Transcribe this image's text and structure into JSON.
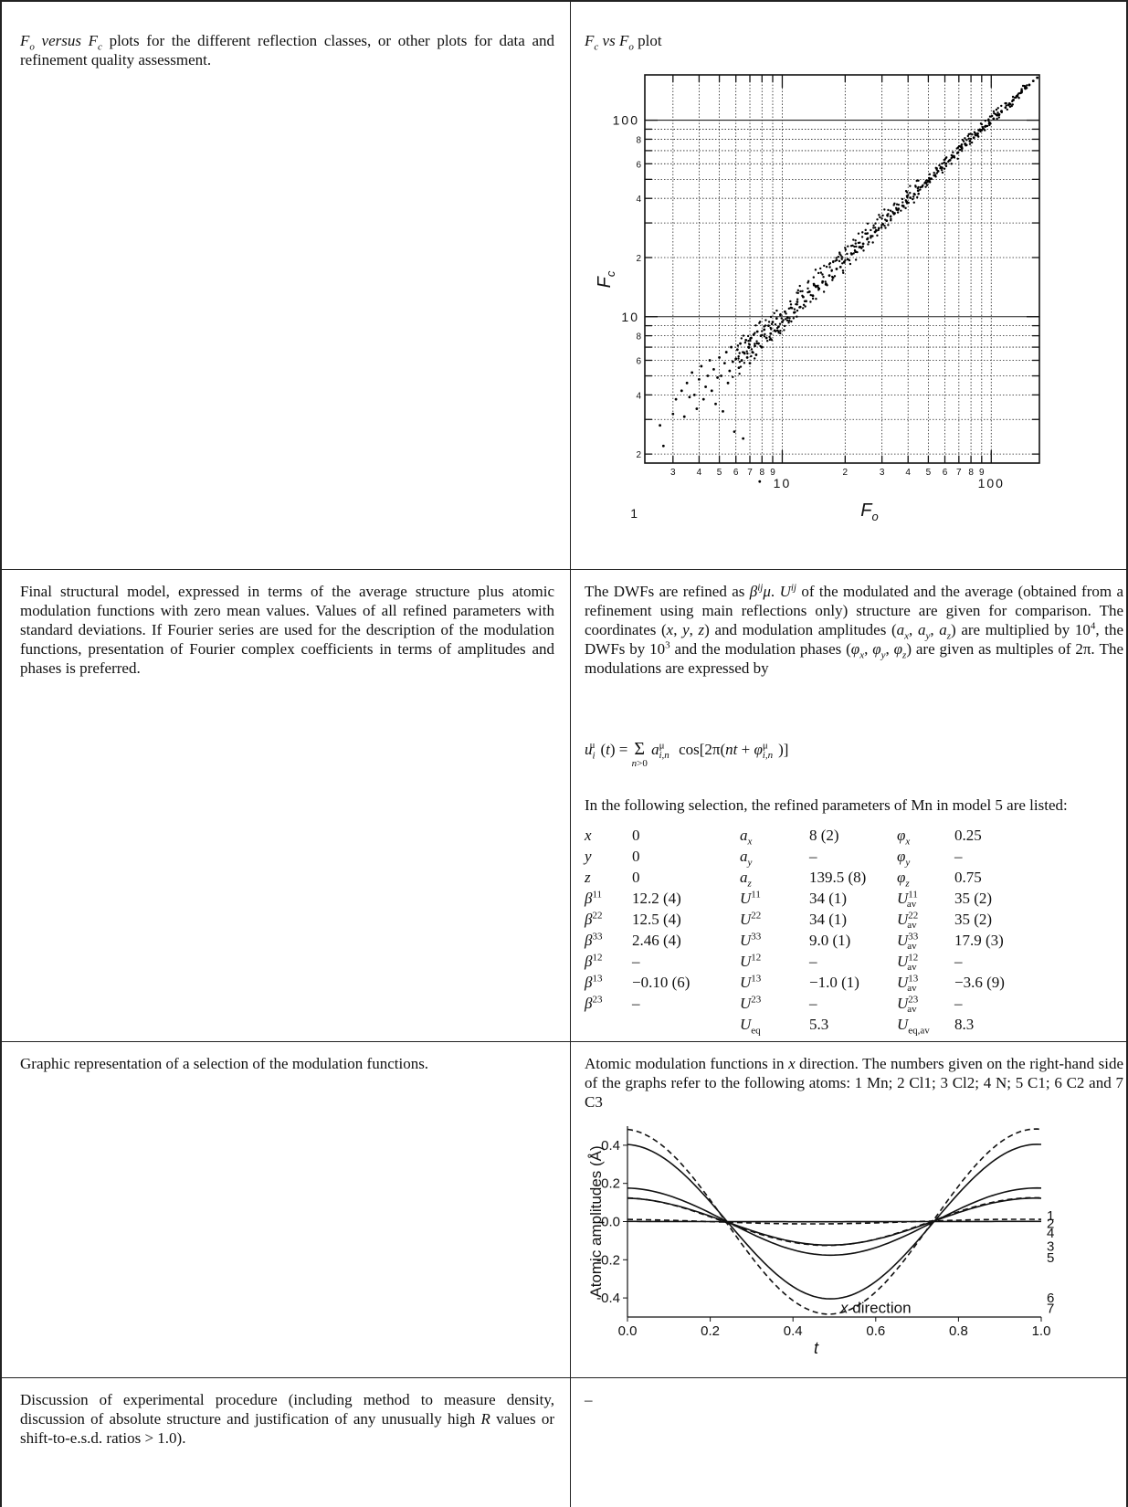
{
  "rows": [
    {
      "left": "F_o versus F_c plots for the different reflection classes, or other plots for data and refinement quality assessment.",
      "right_title": "F_c vs F_o plot"
    },
    {
      "left": "Final structural model, expressed in terms of the average structure plus atomic modulation functions with zero mean values. Values of all refined parameters with standard deviations. If Fourier series are used for the description of the modulation functions, presentation of Fourier complex coefficients in terms of amplitudes and phases is preferred.",
      "right_intro_1": "The DWFs are refined as",
      "right_intro_2": "of the modulated and the average (obtained from a refinement using main reflections only) structure are given for comparison. The coordinates",
      "right_intro_3": "and modulation amplitudes",
      "right_intro_4": "are multiplied by",
      "right_intro_5": "the DWFs by",
      "right_intro_6": "and the modulation phases",
      "right_intro_7": "are given as multiples of 2π. The modulations are expressed by",
      "formula": "u_i^μ(t) = Σ_{n>0} a^μ_{i,n} cos[2π(nt + φ^μ_{i,n})]",
      "selection_text": "In the following selection, the refined parameters of Mn in model 5 are listed:"
    },
    {
      "left": "Graphic representation of a selection of the modulation functions.",
      "right": "Atomic modulation functions in x direction. The numbers given on the right-hand side of the graphs refer to the following atoms: 1 Mn; 2 Cl1; 3 Cl2; 4 N; 5 C1; 6 C2 and 7 C3"
    },
    {
      "left": "Discussion of experimental procedure (including method to measure density, discussion of absolute structure and justification of any unusually high R values or shift-to-e.s.d. ratios > 1.0).",
      "right": "–"
    }
  ],
  "params": {
    "col1": [
      {
        "label": "x",
        "value": "0"
      },
      {
        "label": "y",
        "value": "0"
      },
      {
        "label": "z",
        "value": "0"
      },
      {
        "label": "β11",
        "value": "12.2 (4)"
      },
      {
        "label": "β22",
        "value": "12.5 (4)"
      },
      {
        "label": "β33",
        "value": "2.46 (4)"
      },
      {
        "label": "β12",
        "value": "–"
      },
      {
        "label": "β13",
        "value": "−0.10 (6)"
      },
      {
        "label": "β23",
        "value": "–"
      }
    ],
    "col2": [
      {
        "label": "a_x",
        "value": "8 (2)"
      },
      {
        "label": "a_y",
        "value": "–"
      },
      {
        "label": "a_z",
        "value": "139.5 (8)"
      },
      {
        "label": "U11",
        "value": "34 (1)"
      },
      {
        "label": "U22",
        "value": "34 (1)"
      },
      {
        "label": "U33",
        "value": "9.0 (1)"
      },
      {
        "label": "U12",
        "value": "–"
      },
      {
        "label": "U13",
        "value": "−1.0 (1)"
      },
      {
        "label": "U23",
        "value": "–"
      },
      {
        "label": "U_eq",
        "value": "5.3"
      }
    ],
    "col3": [
      {
        "label": "φ_x",
        "value": "0.25"
      },
      {
        "label": "φ_y",
        "value": "–"
      },
      {
        "label": "φ_z",
        "value": "0.75"
      },
      {
        "label": "U11_av",
        "value": "35 (2)"
      },
      {
        "label": "U22_av",
        "value": "35 (2)"
      },
      {
        "label": "U33_av",
        "value": "17.9 (3)"
      },
      {
        "label": "U12_av",
        "value": "–"
      },
      {
        "label": "U13_av",
        "value": "−3.6 (9)"
      },
      {
        "label": "U23_av",
        "value": "–"
      },
      {
        "label": "U_eq,av",
        "value": "8.3"
      }
    ]
  },
  "chart_data": [
    {
      "type": "scatter",
      "title": "",
      "xlabel": "F_o",
      "ylabel": "F_c",
      "xscale": "log",
      "yscale": "log",
      "xlim": [
        2.2,
        170
      ],
      "ylim": [
        1.8,
        170
      ],
      "x_major_ticks": [
        "10",
        "100"
      ],
      "y_major_ticks": [
        "1",
        "10",
        "100"
      ],
      "x_minor_ticks": [
        "3",
        "4",
        "5",
        "6",
        "7",
        "8",
        "9",
        "2",
        "3",
        "4",
        "5",
        "6",
        "7",
        "8",
        "9"
      ],
      "y_minor_ticks": [
        "2",
        "4",
        "6",
        "8",
        "2",
        "4",
        "6",
        "8",
        "2",
        "4",
        "6",
        "8"
      ],
      "grid": true,
      "points": [
        [
          2.6,
          2.8
        ],
        [
          2.7,
          2.2
        ],
        [
          3.0,
          3.2
        ],
        [
          3.1,
          3.8
        ],
        [
          3.3,
          4.2
        ],
        [
          3.4,
          3.1
        ],
        [
          3.5,
          4.6
        ],
        [
          3.6,
          3.9
        ],
        [
          3.7,
          5.2
        ],
        [
          3.8,
          4.0
        ],
        [
          3.9,
          3.4
        ],
        [
          4.0,
          4.8
        ],
        [
          4.1,
          5.6
        ],
        [
          4.2,
          3.8
        ],
        [
          4.3,
          4.4
        ],
        [
          4.4,
          5.0
        ],
        [
          4.5,
          6.0
        ],
        [
          4.6,
          4.2
        ],
        [
          4.7,
          5.4
        ],
        [
          4.8,
          3.6
        ],
        [
          4.9,
          4.9
        ],
        [
          5.0,
          6.2
        ],
        [
          5.1,
          5.0
        ],
        [
          5.2,
          3.3
        ],
        [
          5.3,
          5.8
        ],
        [
          5.4,
          6.6
        ],
        [
          5.5,
          4.6
        ],
        [
          5.6,
          5.3
        ],
        [
          5.7,
          7.0
        ],
        [
          5.8,
          5.9
        ],
        [
          5.9,
          2.6
        ],
        [
          6.0,
          6.1
        ],
        [
          6.1,
          6.8
        ],
        [
          6.2,
          5.5
        ],
        [
          6.3,
          7.3
        ],
        [
          6.4,
          6.0
        ],
        [
          6.5,
          2.4
        ],
        [
          6.6,
          6.5
        ],
        [
          6.7,
          7.6
        ],
        [
          6.8,
          6.2
        ],
        [
          6.9,
          7.0
        ],
        [
          7.0,
          5.8
        ],
        [
          7.1,
          7.8
        ],
        [
          7.2,
          6.6
        ],
        [
          7.3,
          8.1
        ],
        [
          7.4,
          7.1
        ],
        [
          7.5,
          6.4
        ],
        [
          7.6,
          8.4
        ],
        [
          7.7,
          7.3
        ],
        [
          7.8,
          1.45
        ],
        [
          7.9,
          8.0
        ],
        [
          8.0,
          7.0
        ],
        [
          8.2,
          8.6
        ],
        [
          8.4,
          7.8
        ],
        [
          8.6,
          9.0
        ],
        [
          8.8,
          8.2
        ],
        [
          9.0,
          9.4
        ],
        [
          9.2,
          8.5
        ],
        [
          9.4,
          9.8
        ],
        [
          9.6,
          8.9
        ],
        [
          9.8,
          10.2
        ],
        [
          10.0,
          9.4
        ],
        [
          10.3,
          10.6
        ],
        [
          10.6,
          9.9
        ],
        [
          11.0,
          11.1
        ],
        [
          11.4,
          10.5
        ],
        [
          11.8,
          11.9
        ],
        [
          12.2,
          11.2
        ],
        [
          12.6,
          12.6
        ],
        [
          13.0,
          12.0
        ],
        [
          13.5,
          13.4
        ],
        [
          14.0,
          12.8
        ],
        [
          14.5,
          14.2
        ],
        [
          15.0,
          13.9
        ],
        [
          15.6,
          15.1
        ],
        [
          16.2,
          14.7
        ],
        [
          16.8,
          16.2
        ],
        [
          17.5,
          15.8
        ],
        [
          18.2,
          17.5
        ],
        [
          19.0,
          17.9
        ],
        [
          19.8,
          19.0
        ],
        [
          20.6,
          19.6
        ],
        [
          21.5,
          20.8
        ],
        [
          22.4,
          21.4
        ],
        [
          23.4,
          22.6
        ],
        [
          24.4,
          23.5
        ],
        [
          25.5,
          24.8
        ],
        [
          26.6,
          25.7
        ],
        [
          27.8,
          27.0
        ],
        [
          29.0,
          28.2
        ],
        [
          30.3,
          29.6
        ],
        [
          31.6,
          30.8
        ],
        [
          33.0,
          32.4
        ],
        [
          34.5,
          33.6
        ],
        [
          36.0,
          35.4
        ],
        [
          37.6,
          36.7
        ],
        [
          39.3,
          38.5
        ],
        [
          41.0,
          40.3
        ],
        [
          42.8,
          42.1
        ],
        [
          44.7,
          43.8
        ],
        [
          46.7,
          45.9
        ],
        [
          48.8,
          47.9
        ],
        [
          51.0,
          50.2
        ],
        [
          53.3,
          52.4
        ],
        [
          55.7,
          55.0
        ],
        [
          58.2,
          57.3
        ],
        [
          60.8,
          60.1
        ],
        [
          63.5,
          62.6
        ],
        [
          66.3,
          65.6
        ],
        [
          69.3,
          68.4
        ],
        [
          72.4,
          71.7
        ],
        [
          75.6,
          74.6
        ],
        [
          79.0,
          78.3
        ],
        [
          82.5,
          81.5
        ],
        [
          86.2,
          85.5
        ],
        [
          90.0,
          89.0
        ],
        [
          94.0,
          93.3
        ],
        [
          98.2,
          97.2
        ],
        [
          102.6,
          101.8
        ],
        [
          107.2,
          106.1
        ],
        [
          112.0,
          111.2
        ],
        [
          117.0,
          116.0
        ],
        [
          122.2,
          121.5
        ],
        [
          127.7,
          126.8
        ],
        [
          133.4,
          132.6
        ],
        [
          139.4,
          138.3
        ],
        [
          145.6,
          144.9
        ],
        [
          152.1,
          151.2
        ],
        [
          158.9,
          158.4
        ],
        [
          166.0,
          164.5
        ]
      ]
    },
    {
      "type": "line",
      "title": "",
      "xlabel": "t",
      "ylabel": "Atomic amplitudes (Å)",
      "annotation": "x direction",
      "xlim": [
        0.0,
        1.0
      ],
      "ylim": [
        -0.5,
        0.5
      ],
      "x_ticks": [
        "0.0",
        "0.2",
        "0.4",
        "0.6",
        "0.8",
        "1.0"
      ],
      "y_ticks": [
        "0.4",
        "0.2",
        "0.0",
        "-0.2",
        "-0.4"
      ],
      "series": [
        {
          "name": "1",
          "style": "solid",
          "amplitude": 0.0008,
          "phase": 0.25,
          "end_value": -0.0
        },
        {
          "name": "2",
          "style": "dashed",
          "amplitude": 0.012,
          "phase": 0.2,
          "end_value": -0.01
        },
        {
          "name": "4",
          "style": "dashed",
          "amplitude": 0.125,
          "phase": 0.4,
          "end_value": -0.11
        },
        {
          "name": "3",
          "style": "solid",
          "amplitude": 0.123,
          "phase": 0.43,
          "end_value": -0.14
        },
        {
          "name": "5",
          "style": "solid",
          "amplitude": 0.176,
          "phase": 0.45,
          "end_value": -0.17
        },
        {
          "name": "6",
          "style": "solid",
          "amplitude": 0.405,
          "phase": 0.45,
          "end_value": -0.38
        },
        {
          "name": "7",
          "style": "dashed",
          "amplitude": 0.485,
          "phase": 0.43,
          "end_value": -0.45
        }
      ]
    }
  ]
}
